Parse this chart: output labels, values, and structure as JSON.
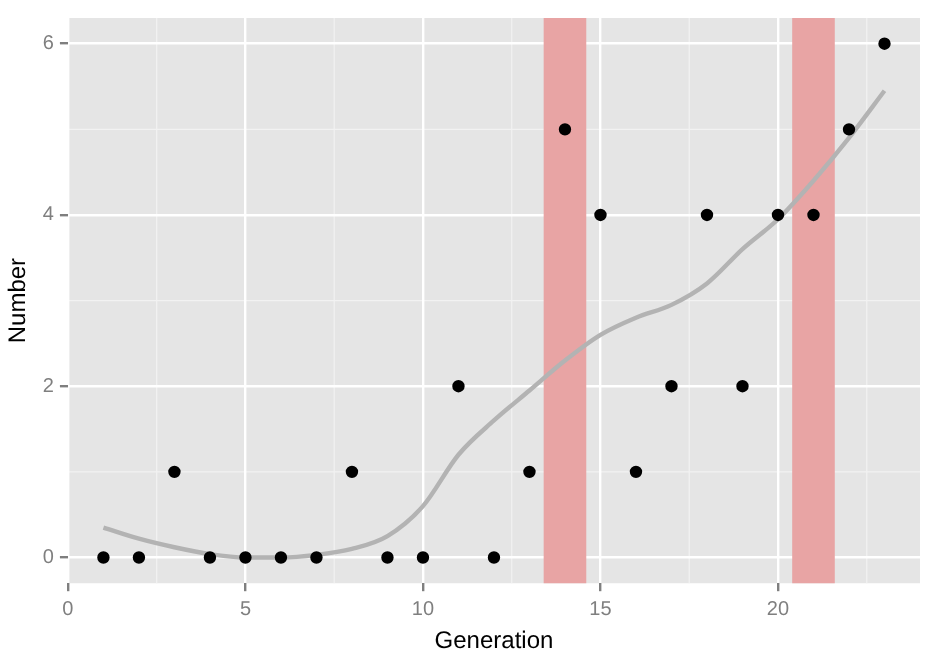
{
  "chart_data": {
    "type": "scatter",
    "xlabel": "Generation",
    "ylabel": "Number",
    "xlim": [
      0,
      24
    ],
    "ylim": [
      -0.3,
      6.3
    ],
    "xticks": [
      0,
      5,
      10,
      15,
      20
    ],
    "yticks": [
      0,
      2,
      4,
      6
    ],
    "grid": true,
    "marker": "circle",
    "series": [
      {
        "color": "#000000",
        "x": [
          1,
          2,
          3,
          4,
          5,
          6,
          7,
          8,
          9,
          10,
          11,
          12,
          13,
          14,
          15,
          16,
          17,
          18,
          19,
          20,
          21,
          22,
          23
        ],
        "values": [
          0,
          0,
          1,
          0,
          0,
          0,
          0,
          1,
          0,
          0,
          2,
          0,
          1,
          5,
          4,
          1,
          2,
          4,
          2,
          4,
          4,
          5,
          6
        ]
      },
      {
        "type": "line",
        "color": "#b3b3b3",
        "marker": "none",
        "x": [
          1,
          2,
          3,
          4,
          5,
          6,
          7,
          8,
          9,
          10,
          11,
          12,
          13,
          14,
          15,
          16,
          17,
          18,
          19,
          20,
          21,
          22,
          23
        ],
        "values": [
          0.35,
          0.22,
          0.12,
          0.04,
          0,
          0,
          0.03,
          0.1,
          0.25,
          0.6,
          1.2,
          1.6,
          1.95,
          2.3,
          2.6,
          2.8,
          2.95,
          3.2,
          3.6,
          3.95,
          4.4,
          4.9,
          5.45
        ]
      }
    ],
    "bands": [
      {
        "axis": "x",
        "from": 13.4,
        "to": 14.6,
        "color": "#e8a4a4"
      },
      {
        "axis": "x",
        "from": 20.4,
        "to": 21.6,
        "color": "#e8a4a4"
      }
    ]
  }
}
